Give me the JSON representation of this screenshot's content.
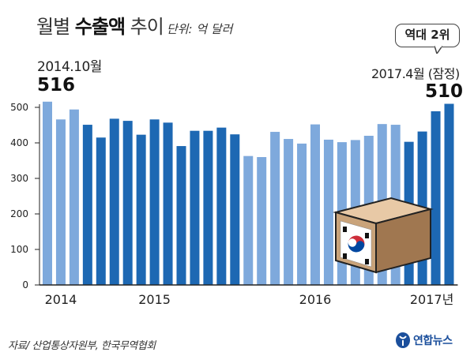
{
  "header": {
    "title_plain_1": "월별 ",
    "title_bold": "수출액",
    "title_plain_2": " 추이",
    "unit": "단위: 억 달러"
  },
  "annotations": {
    "peak_date": "2014.10월",
    "peak_value": "516",
    "badge": "역대 2위",
    "latest_date": "2017.4월 (잠정)",
    "latest_value": "510"
  },
  "source": "자료/ 산업통상자원부, 한국무역협회",
  "logo": {
    "text": "연합뉴스"
  },
  "colors": {
    "light_bar": "#7ea9dc",
    "dark_bar": "#1d68b3",
    "axis": "#222222",
    "box": "#c9a37a"
  },
  "chart_data": {
    "type": "bar",
    "title": "월별 수출액 추이",
    "unit": "단위: 억 달러",
    "ylim": [
      0,
      500
    ],
    "yticks": [
      0,
      100,
      200,
      300,
      400,
      500
    ],
    "x_labels": [
      "2014",
      "2015",
      "2016",
      "2017년"
    ],
    "grid": false,
    "legend": false,
    "series": [
      {
        "values": [
          516,
          466,
          494,
          451,
          415,
          468,
          462,
          423,
          466,
          457,
          391,
          434,
          434,
          443,
          424,
          363,
          360,
          431,
          411,
          398,
          452,
          409,
          402,
          408,
          420,
          453,
          451,
          403,
          432,
          489,
          510
        ],
        "colors": [
          "light",
          "light",
          "light",
          "dark",
          "dark",
          "dark",
          "dark",
          "dark",
          "dark",
          "dark",
          "dark",
          "dark",
          "dark",
          "dark",
          "dark",
          "light",
          "light",
          "light",
          "light",
          "light",
          "light",
          "light",
          "light",
          "light",
          "light",
          "light",
          "light",
          "dark",
          "dark",
          "dark",
          "dark"
        ]
      }
    ],
    "year_label_positions": [
      {
        "label": "2014",
        "bar_index": 1
      },
      {
        "label": "2015",
        "bar_index": 8
      },
      {
        "label": "2016",
        "bar_index": 20
      },
      {
        "label": "2017년",
        "bar_index": 28
      }
    ]
  }
}
